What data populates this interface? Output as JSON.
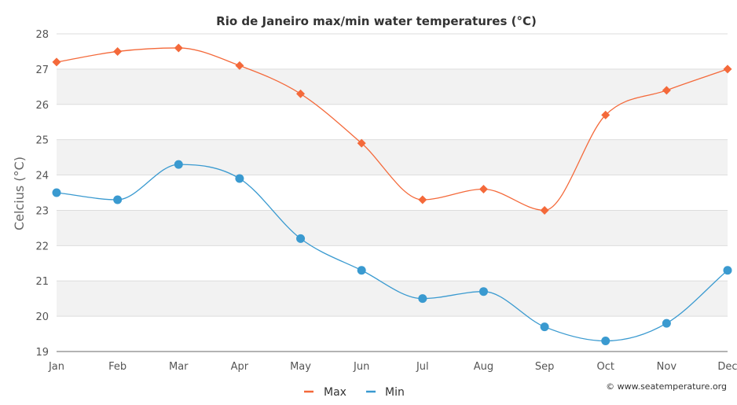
{
  "chart_data": {
    "type": "line",
    "title": "Rio de Janeiro max/min water temperatures (°C)",
    "xlabel": "",
    "ylabel": "Celcius (°C)",
    "categories": [
      "Jan",
      "Feb",
      "Mar",
      "Apr",
      "May",
      "Jun",
      "Jul",
      "Aug",
      "Sep",
      "Oct",
      "Nov",
      "Dec"
    ],
    "ylim": [
      19,
      28
    ],
    "yticks": [
      "19",
      "20",
      "21",
      "22",
      "23",
      "24",
      "25",
      "26",
      "27",
      "28"
    ],
    "series": [
      {
        "name": "Max",
        "color": "#f4693a",
        "marker": "diamond",
        "values": [
          27.2,
          27.5,
          27.6,
          27.1,
          26.3,
          24.9,
          23.3,
          23.6,
          23.0,
          25.7,
          26.4,
          27.0
        ]
      },
      {
        "name": "Min",
        "color": "#3a9ad0",
        "marker": "circle",
        "values": [
          23.5,
          23.3,
          24.3,
          23.9,
          22.2,
          21.3,
          20.5,
          20.7,
          19.7,
          19.3,
          19.8,
          21.3
        ]
      }
    ],
    "legend_position": "bottom-center",
    "grid": true,
    "credit": "© www.seatemperature.org"
  }
}
